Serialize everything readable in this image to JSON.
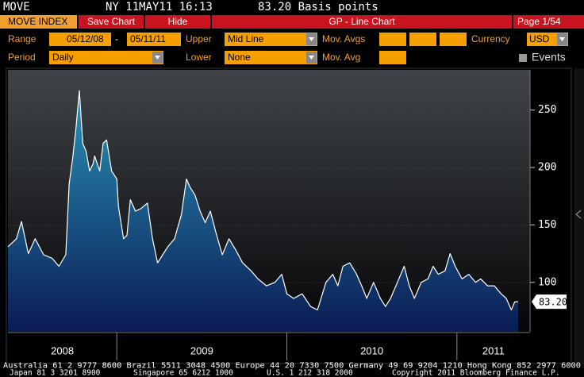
{
  "header": {
    "ticker": "MOVE",
    "time": "NY 11MAY11 16:13",
    "price": "83.20 Basis points"
  },
  "toolbar": {
    "tab": "MOVE INDEX",
    "save": "Save Chart",
    "hide": "Hide",
    "title": "GP - Line Chart",
    "page": "Page 1/54"
  },
  "controls": {
    "range_label": "Range",
    "start": "05/12/08",
    "dash": "-",
    "end": "05/11/11",
    "upper_label": "Upper",
    "upper": "Mid Line",
    "mov_avgs_label": "Mov. Avgs",
    "currency_label": "Currency",
    "currency": "USD",
    "period_label": "Period",
    "period": "Daily",
    "lower_label": "Lower",
    "lower": "None",
    "mov_avg_label": "Mov. Avg",
    "events_label": "Events"
  },
  "chart_data": {
    "type": "line",
    "color": "#ffffff",
    "fill_top": "#2a93b8",
    "fill_bottom": "#0b1c55",
    "x": [
      2008.36,
      2008.41,
      2008.44,
      2008.48,
      2008.52,
      2008.57,
      2008.62,
      2008.66,
      2008.7,
      2008.72,
      2008.74,
      2008.76,
      2008.78,
      2008.8,
      2008.82,
      2008.84,
      2008.86,
      2008.87,
      2008.9,
      2008.92,
      2008.94,
      2008.97,
      2009.0,
      2009.01,
      2009.04,
      2009.06,
      2009.08,
      2009.11,
      2009.14,
      2009.18,
      2009.21,
      2009.24,
      2009.27,
      2009.3,
      2009.34,
      2009.38,
      2009.41,
      2009.43,
      2009.46,
      2009.49,
      2009.52,
      2009.55,
      2009.58,
      2009.62,
      2009.66,
      2009.7,
      2009.74,
      2009.79,
      2009.83,
      2009.88,
      2009.93,
      2009.97,
      2010.0,
      2010.04,
      2010.09,
      2010.14,
      2010.18,
      2010.23,
      2010.27,
      2010.3,
      2010.33,
      2010.37,
      2010.41,
      2010.44,
      2010.47,
      2010.51,
      2010.55,
      2010.58,
      2010.61,
      2010.65,
      2010.69,
      2010.72,
      2010.75,
      2010.79,
      2010.83,
      2010.86,
      2010.89,
      2010.93,
      2010.96,
      2010.99,
      2011.03,
      2011.07,
      2011.11,
      2011.14,
      2011.18,
      2011.22,
      2011.26,
      2011.29,
      2011.32,
      2011.34,
      2011.36
    ],
    "values": [
      131,
      138,
      153,
      125,
      138,
      124,
      121,
      114,
      124,
      186,
      207,
      234,
      267,
      221,
      214,
      197,
      203,
      210,
      197,
      221,
      224,
      197,
      190,
      166,
      138,
      141,
      172,
      162,
      164,
      169,
      138,
      117,
      124,
      131,
      138,
      159,
      190,
      183,
      176,
      162,
      152,
      162,
      145,
      124,
      138,
      128,
      117,
      110,
      103,
      97,
      100,
      107,
      90,
      86,
      90,
      79,
      76,
      100,
      107,
      97,
      114,
      117,
      107,
      97,
      86,
      100,
      86,
      79,
      86,
      100,
      114,
      97,
      86,
      100,
      103,
      114,
      107,
      110,
      125,
      114,
      103,
      107,
      100,
      103,
      97,
      97,
      90,
      86,
      76,
      83,
      83.2
    ],
    "last_label": "83.20",
    "xlim": [
      2008.36,
      2011.43
    ],
    "xticks": [
      2008,
      2009,
      2010,
      2011
    ],
    "ylim": [
      57,
      285
    ],
    "yticks": [
      100,
      150,
      200,
      250
    ],
    "grid": true
  },
  "footer": {
    "line1": "Australia 61 2 9777 8600 Brazil 5511 3048 4500 Europe 44 20 7330 7500 Germany 49 69 9204 1210 Hong Kong 852 2977 6000",
    "line2": [
      "Japan 81 3 3201 8900",
      "Singapore 65 6212 1000",
      "U.S. 1 212 318 2000",
      "Copyright 2011 Bloomberg Finance L.P."
    ]
  }
}
